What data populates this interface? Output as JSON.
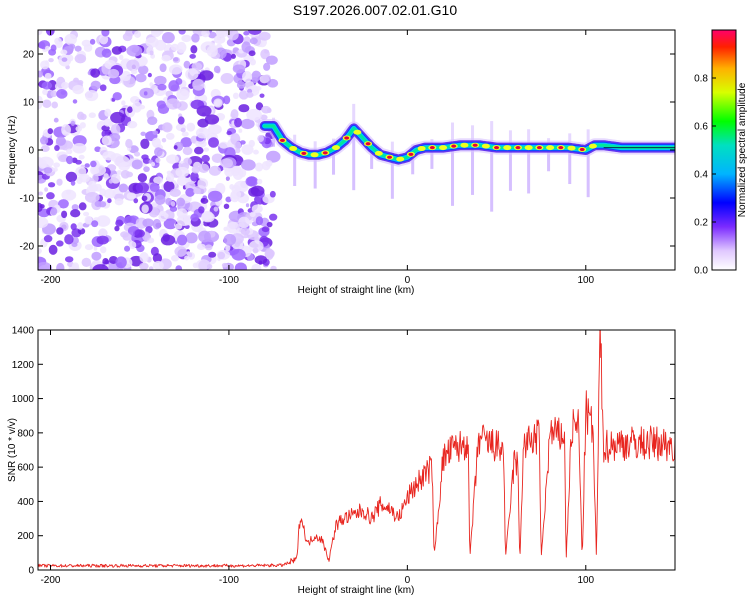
{
  "title": "S197.2026.007.02.01.G10",
  "colors": {
    "snr_line": "#e8251f",
    "axis": "#000000",
    "ridge_core": "#e6003a"
  },
  "chart_data": [
    {
      "type": "heatmap",
      "name": "spectrogram",
      "xlabel": "Height of straight line (km)",
      "ylabel": "Frequency (Hz)",
      "xlim": [
        -207,
        150
      ],
      "ylim": [
        -25,
        25
      ],
      "xticks": [
        -200,
        -100,
        0,
        100
      ],
      "yticks": [
        -20,
        -10,
        0,
        10,
        20
      ],
      "noise_region_x": [
        -207,
        -75
      ],
      "signal_track": {
        "x": [
          -80,
          -75,
          -70,
          -65,
          -60,
          -55,
          -50,
          -45,
          -40,
          -35,
          -30,
          -25,
          -20,
          -15,
          -10,
          -5,
          0,
          5,
          10,
          20,
          30,
          40,
          50,
          60,
          70,
          80,
          90,
          100,
          105,
          110,
          120,
          130,
          140,
          150
        ],
        "freq": [
          5,
          5,
          2,
          0.5,
          -0.5,
          -1,
          -1,
          -0.5,
          0.5,
          2,
          4.5,
          2.5,
          0.5,
          -1,
          -1.5,
          -2,
          -1.5,
          0,
          0.5,
          0.5,
          1,
          1,
          0.5,
          0.5,
          0.5,
          0.5,
          0.5,
          0,
          1,
          1,
          0.5,
          0.5,
          0.5,
          0.5
        ]
      },
      "colorbar": {
        "label": "Normalized spectral amplitude",
        "range": [
          0,
          1
        ],
        "ticks": [
          "0.0",
          "0.2",
          "0.4",
          "0.6",
          "0.8"
        ]
      }
    },
    {
      "type": "line",
      "name": "snr",
      "xlabel": "Height of straight line (km)",
      "ylabel": "SNR (10 * v/v)",
      "xlim": [
        -207,
        150
      ],
      "ylim": [
        0,
        1400
      ],
      "xticks": [
        -200,
        -100,
        0,
        100
      ],
      "yticks": [
        0,
        200,
        400,
        600,
        800,
        1000,
        1200,
        1400
      ],
      "series": [
        {
          "name": "SNR",
          "x": [
            -207,
            -180,
            -150,
            -120,
            -90,
            -70,
            -62,
            -60,
            -56,
            -52,
            -48,
            -44,
            -40,
            -36,
            -30,
            -25,
            -20,
            -15,
            -10,
            -5,
            0,
            5,
            10,
            14,
            15,
            20,
            25,
            30,
            34,
            35,
            40,
            45,
            50,
            54,
            55,
            60,
            62,
            63,
            65,
            70,
            74,
            75,
            80,
            85,
            88,
            89,
            92,
            96,
            98,
            100,
            104,
            106,
            108,
            110,
            115,
            120,
            130,
            140,
            150
          ],
          "y": [
            25,
            25,
            25,
            25,
            25,
            28,
            60,
            330,
            150,
            200,
            180,
            60,
            260,
            300,
            320,
            350,
            300,
            380,
            360,
            300,
            420,
            500,
            560,
            600,
            70,
            650,
            700,
            720,
            760,
            70,
            770,
            740,
            720,
            700,
            60,
            650,
            600,
            30,
            720,
            760,
            780,
            60,
            800,
            780,
            800,
            60,
            820,
            850,
            60,
            930,
            820,
            60,
            1400,
            720,
            730,
            740,
            740,
            740,
            730
          ]
        }
      ]
    }
  ]
}
